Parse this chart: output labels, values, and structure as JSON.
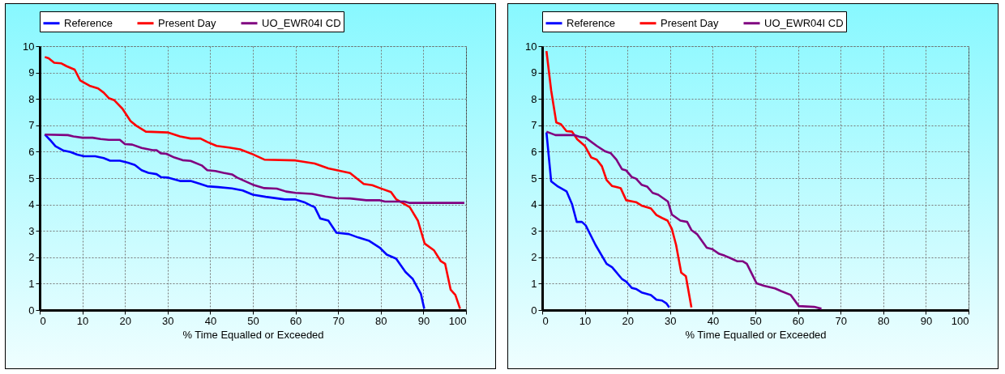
{
  "chart_data": [
    {
      "type": "line",
      "xlabel": "% Time Equalled or Exceeded",
      "xlim": [
        0,
        100
      ],
      "xticks": [
        0,
        10,
        20,
        30,
        40,
        50,
        60,
        70,
        80,
        90,
        100
      ],
      "ylim": [
        0,
        10
      ],
      "yticks": [
        0,
        1,
        2,
        3,
        4,
        5,
        6,
        7,
        8,
        9,
        10
      ],
      "grid": true,
      "legend": "top",
      "marker": "none",
      "line_style": "solid",
      "series": [
        {
          "name": "Reference",
          "color": "#0000ff",
          "x": [
            1.2,
            2.4,
            3.7,
            5.6,
            7.2,
            8.8,
            10.4,
            13,
            15,
            16.5,
            18.8,
            20.7,
            22.3,
            23.9,
            25.5,
            27.4,
            28.4,
            30,
            32.9,
            35.4,
            37.4,
            39.3,
            41.9,
            45.1,
            47.6,
            50,
            53,
            57.5,
            60,
            62,
            63.6,
            64.5,
            65.8,
            67.7,
            69.6,
            72.5,
            74.7,
            77.3,
            79.8,
            81.4,
            83.6,
            85.8,
            87.5,
            89.4,
            90.2
          ],
          "values": [
            6.65,
            6.45,
            6.21,
            6.04,
            5.99,
            5.89,
            5.83,
            5.83,
            5.76,
            5.66,
            5.66,
            5.58,
            5.5,
            5.3,
            5.2,
            5.15,
            5.04,
            5.02,
            4.89,
            4.89,
            4.79,
            4.69,
            4.66,
            4.61,
            4.53,
            4.37,
            4.29,
            4.19,
            4.19,
            4.09,
            3.96,
            3.9,
            3.47,
            3.39,
            2.93,
            2.88,
            2.75,
            2.62,
            2.36,
            2.1,
            1.95,
            1.44,
            1.18,
            0.62,
            0.05
          ]
        },
        {
          "name": "Present Day",
          "color": "#ff0000",
          "x": [
            1.2,
            2.1,
            3.4,
            5,
            6.3,
            8.2,
            9.5,
            11.7,
            13.7,
            15,
            16.2,
            17.5,
            19.4,
            21.3,
            22.6,
            24.9,
            30,
            31.6,
            32.9,
            35.4,
            37.7,
            39.3,
            41.5,
            44.4,
            47,
            50,
            52.7,
            60,
            64.5,
            67.7,
            72.8,
            76,
            78,
            79.8,
            82.4,
            83.6,
            86.8,
            88.7,
            90.3,
            92.5,
            94.1,
            95.1,
            96.4,
            97.5,
            98.6
          ],
          "values": [
            9.59,
            9.54,
            9.37,
            9.35,
            9.24,
            9.11,
            8.7,
            8.5,
            8.4,
            8.24,
            8.03,
            7.95,
            7.63,
            7.16,
            6.99,
            6.76,
            6.73,
            6.65,
            6.58,
            6.5,
            6.5,
            6.37,
            6.22,
            6.16,
            6.09,
            5.9,
            5.7,
            5.67,
            5.55,
            5.37,
            5.19,
            4.78,
            4.73,
            4.62,
            4.47,
            4.2,
            3.9,
            3.39,
            2.52,
            2.26,
            1.85,
            1.75,
            0.77,
            0.57,
            0.05
          ]
        },
        {
          "name": "UO_EWR04I CD",
          "color": "#800080",
          "x": [
            1.2,
            6.6,
            7.9,
            10,
            12.4,
            14.3,
            16.2,
            18.8,
            20,
            21.7,
            23.9,
            26.5,
            27.4,
            28.4,
            29.7,
            31.6,
            33.5,
            35.4,
            38,
            39.3,
            41.2,
            43.1,
            45.1,
            46.3,
            50,
            52.7,
            55.6,
            57.8,
            60,
            63.9,
            67,
            69.6,
            72.8,
            76.6,
            79.8,
            81,
            85.5,
            86.8,
            99.6
          ],
          "values": [
            6.65,
            6.63,
            6.58,
            6.53,
            6.53,
            6.48,
            6.45,
            6.45,
            6.29,
            6.27,
            6.14,
            6.06,
            6.06,
            5.94,
            5.92,
            5.78,
            5.68,
            5.65,
            5.48,
            5.3,
            5.27,
            5.2,
            5.14,
            5.02,
            4.75,
            4.62,
            4.6,
            4.49,
            4.44,
            4.4,
            4.3,
            4.24,
            4.23,
            4.16,
            4.16,
            4.11,
            4.11,
            4.06,
            4.06
          ]
        }
      ]
    },
    {
      "type": "line",
      "xlabel": "% Time Equalled or Exceeded",
      "xlim": [
        0,
        100
      ],
      "xticks": [
        0,
        10,
        20,
        30,
        40,
        50,
        60,
        70,
        80,
        90,
        100
      ],
      "ylim": [
        0,
        10
      ],
      "yticks": [
        0,
        1,
        2,
        3,
        4,
        5,
        6,
        7,
        8,
        9,
        10
      ],
      "grid": true,
      "legend": "top",
      "marker": "none",
      "line_style": "solid",
      "series": [
        {
          "name": "Reference",
          "color": "#0000ff",
          "x": [
            1,
            2.1,
            3.7,
            5.7,
            7,
            8.1,
            9.3,
            10.2,
            12.5,
            15.1,
            16.4,
            18.7,
            19.7,
            21,
            22,
            23.3,
            25.5,
            26.8,
            28.1,
            29.1,
            29.8
          ],
          "values": [
            6.73,
            4.88,
            4.68,
            4.5,
            4.01,
            3.34,
            3.34,
            3.21,
            2.47,
            1.75,
            1.62,
            1.18,
            1.08,
            0.84,
            0.8,
            0.67,
            0.57,
            0.39,
            0.36,
            0.26,
            0.1
          ]
        },
        {
          "name": "Present Day",
          "color": "#ff0000",
          "x": [
            1,
            2.1,
            3.3,
            4.4,
            5.7,
            7,
            8.2,
            10,
            11.5,
            12.8,
            14,
            15.1,
            16.4,
            18.4,
            19.7,
            22,
            23.3,
            25.5,
            26.8,
            28.1,
            29.4,
            30.4,
            31.4,
            32.6,
            33.7,
            35
          ],
          "values": [
            9.81,
            8.32,
            7.11,
            7.04,
            6.78,
            6.76,
            6.47,
            6.22,
            5.78,
            5.7,
            5.45,
            4.93,
            4.7,
            4.62,
            4.16,
            4.09,
            3.96,
            3.85,
            3.6,
            3.49,
            3.39,
            3.08,
            2.47,
            1.42,
            1.28,
            0.1
          ]
        },
        {
          "name": "UO_EWR04I CD",
          "color": "#800080",
          "x": [
            1,
            3.1,
            7.6,
            8.9,
            10.2,
            12.8,
            14.8,
            16.1,
            17.4,
            18.7,
            19.7,
            21,
            22,
            23.3,
            24.6,
            25.9,
            27.2,
            29.5,
            30.4,
            32.4,
            34,
            35,
            36.3,
            38.6,
            39.9,
            41.5,
            42.8,
            44.1,
            45.7,
            47,
            48,
            50.3,
            52,
            54.6,
            56,
            58.3,
            60.2,
            63.8,
            65.5
          ],
          "values": [
            6.76,
            6.63,
            6.63,
            6.56,
            6.53,
            6.22,
            6.01,
            5.94,
            5.7,
            5.34,
            5.29,
            5.04,
            4.98,
            4.75,
            4.68,
            4.44,
            4.37,
            4.11,
            3.62,
            3.39,
            3.34,
            3.03,
            2.88,
            2.36,
            2.31,
            2.13,
            2.06,
            1.97,
            1.85,
            1.85,
            1.75,
            1.01,
            0.92,
            0.82,
            0.72,
            0.57,
            0.15,
            0.12,
            0.05
          ]
        }
      ]
    }
  ]
}
